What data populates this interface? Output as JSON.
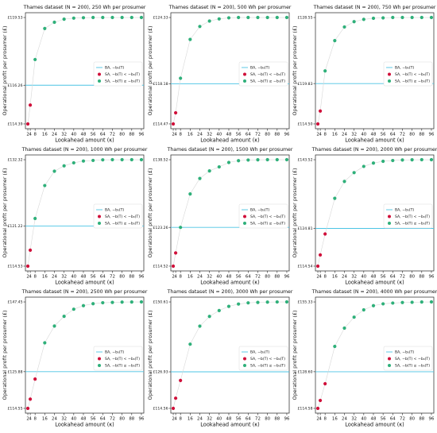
{
  "figure": {
    "shared": {
      "xlabel": "Lookahead amount (κ)",
      "ylabel": "Operational profit per prosumer (£)",
      "x_ticks": [
        2,
        4,
        8,
        16,
        24,
        32,
        40,
        48,
        56,
        64,
        72,
        80,
        88,
        96
      ],
      "x_tick_labels": [
        "2",
        "4",
        "8",
        "16",
        "24",
        "32",
        "40",
        "48",
        "56",
        "64",
        "72",
        "80",
        "88",
        "96"
      ],
      "legend": [
        {
          "key": "ba",
          "label": "BA, −b₀(T)"
        },
        {
          "key": "sa_below",
          "label": "SA, −b(T) < −b₀(T)"
        },
        {
          "key": "sa_above",
          "label": "SA, −b(T) ≥ −b₀(T)"
        }
      ],
      "legend_position": "center-right",
      "colors": {
        "ba_line": "#4cc4e4",
        "sa_below": "#d0103a",
        "sa_above": "#2fb07a",
        "connector": "#d8d8d8"
      }
    }
  },
  "chart_data": [
    {
      "type": "scatter",
      "title": "Thames dataset (N = 200), 250 Wh per prosumer",
      "x": [
        2,
        4,
        8,
        16,
        24,
        32,
        40,
        48,
        56,
        64,
        72,
        80,
        88,
        96
      ],
      "y": [
        114.39,
        115.3,
        117.5,
        119.0,
        119.3,
        119.45,
        119.5,
        119.52,
        119.53,
        119.53,
        119.53,
        119.53,
        119.53,
        119.53
      ],
      "baseline": 116.26,
      "y_ticks": [
        "£114.39",
        "£116.26",
        "£119.53"
      ],
      "ylim": [
        114.39,
        119.53
      ]
    },
    {
      "type": "scatter",
      "title": "Thames dataset (N = 200), 500 Wh per prosumer",
      "x": [
        2,
        4,
        8,
        16,
        24,
        32,
        40,
        48,
        56,
        64,
        72,
        80,
        88,
        96
      ],
      "y": [
        114.47,
        115.5,
        118.7,
        122.3,
        123.5,
        124.0,
        124.2,
        124.3,
        124.33,
        124.33,
        124.33,
        124.33,
        124.33,
        124.33
      ],
      "baseline": 118.18,
      "y_ticks": [
        "£114.47",
        "£118.18",
        "£124.33"
      ],
      "ylim": [
        114.47,
        124.33
      ]
    },
    {
      "type": "scatter",
      "title": "Thames dataset (N = 200), 750 Wh per prosumer",
      "x": [
        2,
        4,
        8,
        16,
        24,
        32,
        40,
        48,
        56,
        64,
        72,
        80,
        88,
        96
      ],
      "y": [
        114.5,
        116.2,
        121.5,
        125.5,
        127.3,
        128.0,
        128.3,
        128.45,
        128.5,
        128.55,
        128.55,
        128.55,
        128.55,
        128.55
      ],
      "baseline": 119.83,
      "y_ticks": [
        "£114.50",
        "£119.83",
        "£128.55"
      ],
      "ylim": [
        114.5,
        128.55
      ]
    },
    {
      "type": "scatter",
      "title": "Thames dataset (N = 200), 1000 Wh per prosumer",
      "x": [
        2,
        4,
        8,
        16,
        24,
        32,
        40,
        48,
        56,
        64,
        72,
        80,
        88,
        96
      ],
      "y": [
        114.53,
        117.2,
        122.5,
        128.0,
        130.4,
        131.3,
        131.8,
        132.1,
        132.2,
        132.3,
        132.32,
        132.32,
        132.32,
        132.32
      ],
      "baseline": 121.22,
      "y_ticks": [
        "£114.53",
        "£121.22",
        "£132.32"
      ],
      "ylim": [
        114.53,
        132.32
      ]
    },
    {
      "type": "scatter",
      "title": "Thames dataset (N = 200), 1500 Wh per prosumer",
      "x": [
        2,
        4,
        8,
        16,
        24,
        32,
        40,
        48,
        56,
        64,
        72,
        80,
        88,
        96
      ],
      "y": [
        114.52,
        117.5,
        123.26,
        130.8,
        134.3,
        136.0,
        136.9,
        137.9,
        138.3,
        138.45,
        138.5,
        138.52,
        138.52,
        138.52
      ],
      "baseline": 123.26,
      "y_ticks": [
        "£114.52",
        "£123.26",
        "£138.52"
      ],
      "ylim": [
        114.52,
        138.52
      ]
    },
    {
      "type": "scatter",
      "title": "Thames dataset (N = 200), 2000 Wh per prosumer",
      "x": [
        2,
        4,
        8,
        16,
        24,
        32,
        40,
        48,
        56,
        64,
        72,
        80,
        88,
        96
      ],
      "y": [
        114.54,
        117.6,
        123.3,
        133.0,
        137.6,
        140.0,
        141.7,
        142.6,
        143.1,
        143.3,
        143.45,
        143.5,
        143.52,
        143.52
      ],
      "baseline": 124.81,
      "y_ticks": [
        "£114.54",
        "£124.81",
        "£143.52"
      ],
      "ylim": [
        114.54,
        143.52
      ]
    },
    {
      "type": "scatter",
      "title": "Thames dataset (N = 200), 2500 Wh per prosumer",
      "x": [
        2,
        4,
        8,
        16,
        24,
        32,
        40,
        48,
        56,
        64,
        72,
        80,
        88,
        96
      ],
      "y": [
        114.55,
        117.4,
        123.6,
        134.8,
        140.0,
        143.0,
        145.2,
        146.3,
        146.9,
        147.2,
        147.3,
        147.4,
        147.43,
        147.45
      ],
      "baseline": 125.88,
      "y_ticks": [
        "£114.55",
        "£125.88",
        "£147.45"
      ],
      "ylim": [
        114.55,
        147.45
      ]
    },
    {
      "type": "scatter",
      "title": "Thames dataset (N = 200), 3000 Wh per prosumer",
      "x": [
        2,
        4,
        8,
        16,
        24,
        32,
        40,
        48,
        56,
        64,
        72,
        80,
        88,
        96
      ],
      "y": [
        114.56,
        118.0,
        124.0,
        136.3,
        142.4,
        145.7,
        147.7,
        149.1,
        149.9,
        150.3,
        150.45,
        150.55,
        150.6,
        150.61
      ],
      "baseline": 126.93,
      "y_ticks": [
        "£114.56",
        "£126.93",
        "£150.61"
      ],
      "ylim": [
        114.56,
        150.61
      ]
    },
    {
      "type": "scatter",
      "title": "Thames dataset (N = 200), 4000 Wh per prosumer",
      "x": [
        2,
        4,
        8,
        16,
        24,
        32,
        40,
        48,
        56,
        64,
        72,
        80,
        88,
        96
      ],
      "y": [
        114.58,
        117.6,
        124.0,
        138.3,
        145.3,
        149.5,
        152.3,
        153.9,
        154.6,
        154.9,
        155.1,
        155.2,
        155.3,
        155.33
      ],
      "baseline": 128.6,
      "y_ticks": [
        "£114.58",
        "£128.60",
        "£155.33"
      ],
      "ylim": [
        114.58,
        155.33
      ]
    }
  ]
}
